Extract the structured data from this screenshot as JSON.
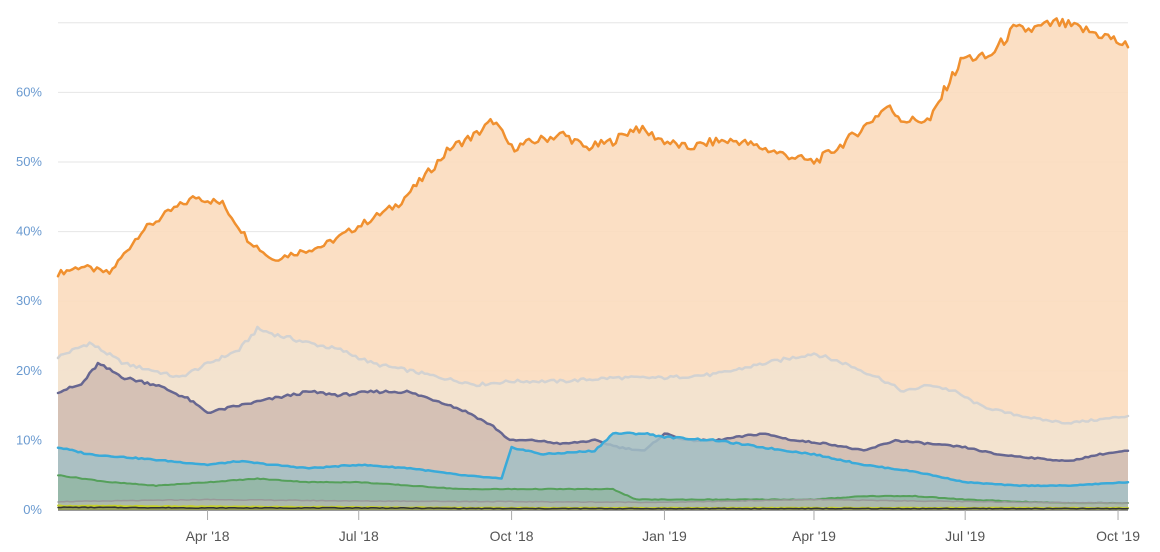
{
  "colors": {
    "grid": "#e6e6e6",
    "y_tick_text": "#6a9ad0",
    "x_tick_text": "#555555"
  },
  "chart_data": {
    "type": "area",
    "title": "",
    "xlabel": "",
    "ylabel": "",
    "x_range": [
      "2018-01-01",
      "2019-10-07"
    ],
    "ylim": [
      0,
      70
    ],
    "y_ticks": [
      0,
      10,
      20,
      30,
      40,
      50,
      60
    ],
    "y_tick_labels": [
      "0%",
      "10%",
      "20%",
      "30%",
      "40%",
      "50%",
      "60%"
    ],
    "x_ticks": [
      "2018-04-01",
      "2018-07-01",
      "2018-10-01",
      "2019-01-01",
      "2019-04-01",
      "2019-07-01",
      "2019-10-01"
    ],
    "x_tick_labels": [
      "Apr '18",
      "Jul '18",
      "Oct '18",
      "Jan '19",
      "Apr '19",
      "Jul '19",
      "Oct '19"
    ],
    "grid": true,
    "legend": "none",
    "series": [
      {
        "color": "#f0902f",
        "fill": "#fbdcbe",
        "fill_opacity": 0.9,
        "stroke_width": 2.5,
        "points": [
          [
            "2018-01-01",
            34
          ],
          [
            "2018-01-15",
            35
          ],
          [
            "2018-02-01",
            34
          ],
          [
            "2018-02-20",
            40
          ],
          [
            "2018-03-10",
            43
          ],
          [
            "2018-03-25",
            45
          ],
          [
            "2018-04-10",
            44
          ],
          [
            "2018-04-25",
            39
          ],
          [
            "2018-05-10",
            36
          ],
          [
            "2018-05-25",
            37
          ],
          [
            "2018-06-10",
            38
          ],
          [
            "2018-06-25",
            40
          ],
          [
            "2018-07-10",
            42
          ],
          [
            "2018-07-25",
            44
          ],
          [
            "2018-08-10",
            48
          ],
          [
            "2018-08-25",
            52
          ],
          [
            "2018-09-10",
            54
          ],
          [
            "2018-09-20",
            56
          ],
          [
            "2018-10-01",
            52
          ],
          [
            "2018-10-15",
            53
          ],
          [
            "2018-11-01",
            54
          ],
          [
            "2018-11-15",
            52
          ],
          [
            "2018-12-01",
            53
          ],
          [
            "2018-12-15",
            55
          ],
          [
            "2019-01-01",
            53
          ],
          [
            "2019-01-15",
            52
          ],
          [
            "2019-02-01",
            53
          ],
          [
            "2019-02-15",
            53
          ],
          [
            "2019-03-01",
            52
          ],
          [
            "2019-03-15",
            51
          ],
          [
            "2019-04-01",
            50
          ],
          [
            "2019-04-15",
            52
          ],
          [
            "2019-05-01",
            55
          ],
          [
            "2019-05-15",
            58
          ],
          [
            "2019-05-25",
            56
          ],
          [
            "2019-06-10",
            56
          ],
          [
            "2019-06-20",
            61
          ],
          [
            "2019-06-30",
            65
          ],
          [
            "2019-07-15",
            65
          ],
          [
            "2019-07-30",
            69
          ],
          [
            "2019-08-10",
            69
          ],
          [
            "2019-08-25",
            70
          ],
          [
            "2019-09-10",
            69
          ],
          [
            "2019-09-25",
            68
          ],
          [
            "2019-10-07",
            66.5
          ]
        ]
      },
      {
        "color": "#d2d2d2",
        "fill": "#f1e4d2",
        "fill_opacity": 0.8,
        "stroke_width": 2.5,
        "points": [
          [
            "2018-01-01",
            22
          ],
          [
            "2018-01-20",
            24
          ],
          [
            "2018-02-10",
            21
          ],
          [
            "2018-02-28",
            20
          ],
          [
            "2018-03-15",
            19
          ],
          [
            "2018-04-01",
            21
          ],
          [
            "2018-04-20",
            23
          ],
          [
            "2018-05-01",
            26
          ],
          [
            "2018-05-15",
            25
          ],
          [
            "2018-06-01",
            24
          ],
          [
            "2018-06-20",
            23
          ],
          [
            "2018-07-10",
            21
          ],
          [
            "2018-08-01",
            20
          ],
          [
            "2018-08-20",
            19
          ],
          [
            "2018-09-10",
            18
          ],
          [
            "2018-10-01",
            18.5
          ],
          [
            "2018-11-01",
            18.5
          ],
          [
            "2018-12-01",
            19
          ],
          [
            "2019-01-01",
            19
          ],
          [
            "2019-02-01",
            19.5
          ],
          [
            "2019-03-01",
            21
          ],
          [
            "2019-04-01",
            22.5
          ],
          [
            "2019-04-20",
            21
          ],
          [
            "2019-05-10",
            19
          ],
          [
            "2019-05-25",
            17
          ],
          [
            "2019-06-10",
            18
          ],
          [
            "2019-06-25",
            17
          ],
          [
            "2019-07-10",
            15
          ],
          [
            "2019-07-25",
            14
          ],
          [
            "2019-08-15",
            13
          ],
          [
            "2019-09-01",
            12.5
          ],
          [
            "2019-09-20",
            13
          ],
          [
            "2019-10-07",
            13.5
          ]
        ]
      },
      {
        "color": "#676791",
        "fill": "#cdb8ae",
        "fill_opacity": 0.8,
        "stroke_width": 2.5,
        "points": [
          [
            "2018-01-01",
            17
          ],
          [
            "2018-01-15",
            18
          ],
          [
            "2018-01-25",
            21
          ],
          [
            "2018-02-10",
            19
          ],
          [
            "2018-03-01",
            18
          ],
          [
            "2018-03-20",
            16
          ],
          [
            "2018-04-01",
            14
          ],
          [
            "2018-04-20",
            15
          ],
          [
            "2018-05-10",
            16
          ],
          [
            "2018-06-01",
            17
          ],
          [
            "2018-06-20",
            16.5
          ],
          [
            "2018-07-10",
            17
          ],
          [
            "2018-07-30",
            17
          ],
          [
            "2018-08-20",
            15.5
          ],
          [
            "2018-09-05",
            14
          ],
          [
            "2018-09-20",
            12
          ],
          [
            "2018-09-30",
            10
          ],
          [
            "2018-10-15",
            10
          ],
          [
            "2018-11-01",
            9.5
          ],
          [
            "2018-11-20",
            10
          ],
          [
            "2018-12-05",
            9
          ],
          [
            "2018-12-20",
            8.5
          ],
          [
            "2019-01-01",
            11
          ],
          [
            "2019-01-15",
            10
          ],
          [
            "2019-02-01",
            10
          ],
          [
            "2019-03-01",
            11
          ],
          [
            "2019-03-20",
            10
          ],
          [
            "2019-04-10",
            9.5
          ],
          [
            "2019-05-01",
            8.5
          ],
          [
            "2019-05-20",
            10
          ],
          [
            "2019-06-10",
            9.5
          ],
          [
            "2019-07-01",
            9
          ],
          [
            "2019-07-20",
            8
          ],
          [
            "2019-08-10",
            7.5
          ],
          [
            "2019-09-01",
            7
          ],
          [
            "2019-09-20",
            8
          ],
          [
            "2019-10-07",
            8.5
          ]
        ]
      },
      {
        "color": "#3aaad9",
        "fill": "#a3bfc6",
        "fill_opacity": 0.85,
        "stroke_width": 2.5,
        "points": [
          [
            "2018-01-01",
            9
          ],
          [
            "2018-01-20",
            8
          ],
          [
            "2018-02-15",
            7.5
          ],
          [
            "2018-03-10",
            7
          ],
          [
            "2018-04-01",
            6.5
          ],
          [
            "2018-04-20",
            7
          ],
          [
            "2018-05-10",
            6.5
          ],
          [
            "2018-06-01",
            6
          ],
          [
            "2018-07-01",
            6.5
          ],
          [
            "2018-08-01",
            6
          ],
          [
            "2018-09-01",
            5
          ],
          [
            "2018-09-25",
            4.5
          ],
          [
            "2018-10-01",
            9
          ],
          [
            "2018-10-20",
            8
          ],
          [
            "2018-11-20",
            8.5
          ],
          [
            "2018-12-01",
            11
          ],
          [
            "2018-12-20",
            11
          ],
          [
            "2019-01-01",
            10.5
          ],
          [
            "2019-02-01",
            10
          ],
          [
            "2019-03-01",
            9
          ],
          [
            "2019-04-01",
            8
          ],
          [
            "2019-05-01",
            6.5
          ],
          [
            "2019-06-01",
            5.5
          ],
          [
            "2019-07-01",
            4
          ],
          [
            "2019-08-01",
            3.5
          ],
          [
            "2019-09-01",
            3.5
          ],
          [
            "2019-10-07",
            4
          ]
        ]
      },
      {
        "color": "#55a05b",
        "fill": "#8fb5a0",
        "fill_opacity": 0.75,
        "stroke_width": 2,
        "points": [
          [
            "2018-01-01",
            5
          ],
          [
            "2018-02-01",
            4
          ],
          [
            "2018-03-01",
            3.5
          ],
          [
            "2018-04-01",
            4
          ],
          [
            "2018-05-01",
            4.5
          ],
          [
            "2018-06-01",
            4
          ],
          [
            "2018-07-01",
            4
          ],
          [
            "2018-08-01",
            3.5
          ],
          [
            "2018-09-01",
            3
          ],
          [
            "2018-10-01",
            3
          ],
          [
            "2018-11-01",
            3
          ],
          [
            "2018-12-01",
            3
          ],
          [
            "2018-12-15",
            1.5
          ],
          [
            "2019-01-01",
            1.5
          ],
          [
            "2019-02-01",
            1.5
          ],
          [
            "2019-03-01",
            1.5
          ],
          [
            "2019-04-01",
            1.5
          ],
          [
            "2019-05-01",
            2
          ],
          [
            "2019-06-01",
            2
          ],
          [
            "2019-07-01",
            1.5
          ],
          [
            "2019-08-01",
            1.2
          ],
          [
            "2019-09-01",
            1
          ],
          [
            "2019-10-07",
            1
          ]
        ]
      },
      {
        "color": "#999999",
        "fill": "#c4b9ae",
        "fill_opacity": 0.5,
        "stroke_width": 1.5,
        "points": [
          [
            "2018-01-01",
            1.2
          ],
          [
            "2018-04-01",
            1.5
          ],
          [
            "2018-07-01",
            1.3
          ],
          [
            "2018-10-01",
            1.2
          ],
          [
            "2019-01-01",
            1.1
          ],
          [
            "2019-04-01",
            1.5
          ],
          [
            "2019-07-01",
            1.2
          ],
          [
            "2019-10-07",
            1.0
          ]
        ]
      },
      {
        "color": "#c6d12a",
        "fill": "#c6d12a",
        "fill_opacity": 0.5,
        "stroke_width": 2,
        "points": [
          [
            "2018-01-01",
            0.6
          ],
          [
            "2018-04-01",
            0.5
          ],
          [
            "2018-07-01",
            0.4
          ],
          [
            "2018-10-01",
            0.3
          ],
          [
            "2019-01-01",
            0.3
          ],
          [
            "2019-04-01",
            0.3
          ],
          [
            "2019-07-01",
            0.3
          ],
          [
            "2019-10-07",
            0.3
          ]
        ]
      },
      {
        "color": "#333333",
        "fill": "#333333",
        "fill_opacity": 0.3,
        "stroke_width": 1.5,
        "points": [
          [
            "2018-01-01",
            0.4
          ],
          [
            "2018-04-01",
            0.3
          ],
          [
            "2018-07-01",
            0.3
          ],
          [
            "2018-10-01",
            0.2
          ],
          [
            "2019-01-01",
            0.2
          ],
          [
            "2019-04-01",
            0.2
          ],
          [
            "2019-07-01",
            0.2
          ],
          [
            "2019-10-07",
            0.2
          ]
        ]
      }
    ]
  }
}
